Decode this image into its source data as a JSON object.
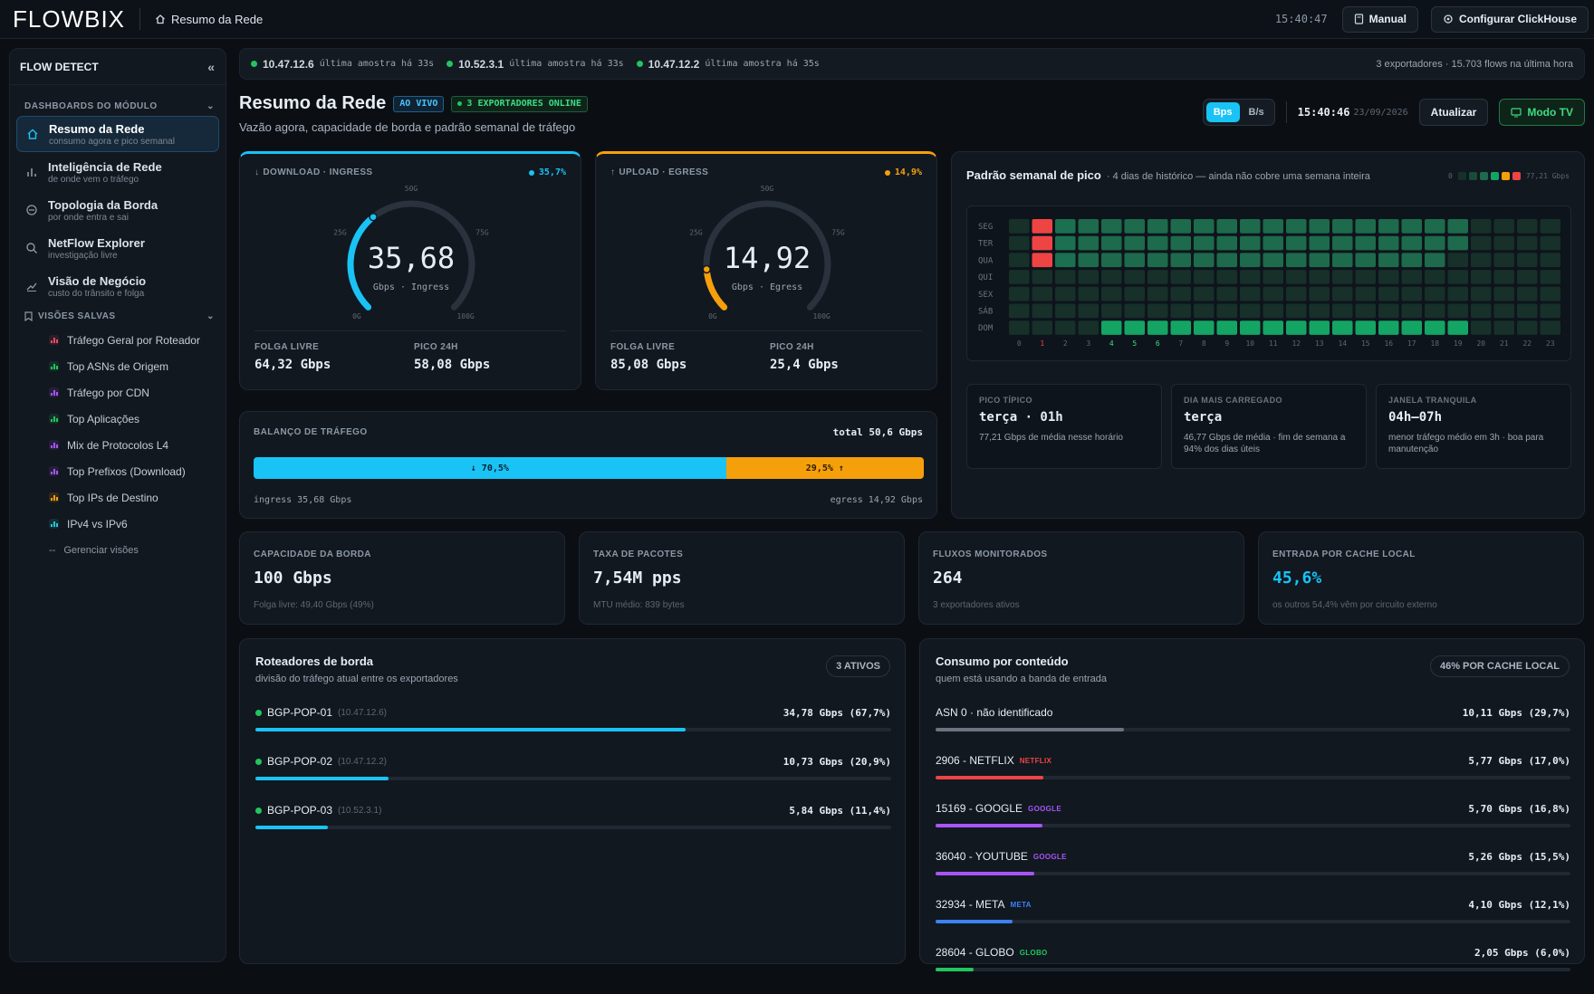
{
  "topbar": {
    "logo": "FLOWBIX",
    "breadcrumb": "Resumo da Rede",
    "clock": "15:40:47",
    "manual_label": "Manual",
    "config_label": "Configurar ClickHouse"
  },
  "sidebar": {
    "title": "FLOW DETECT",
    "section_dashboards": "DASHBOARDS DO MÓDULO",
    "nav": [
      {
        "title": "Resumo da Rede",
        "sub": "consumo agora e pico semanal",
        "icon": "home-icon",
        "active": true
      },
      {
        "title": "Inteligência de Rede",
        "sub": "de onde vem o tráfego",
        "icon": "bar-chart-icon"
      },
      {
        "title": "Topologia da Borda",
        "sub": "por onde entra e sai",
        "icon": "circle-minus-icon"
      },
      {
        "title": "NetFlow Explorer",
        "sub": "investigação livre",
        "icon": "search-icon"
      },
      {
        "title": "Visão de Negócio",
        "sub": "custo do trânsito e folga",
        "icon": "trend-icon"
      }
    ],
    "section_saved": "VISÕES SALVAS",
    "saved": [
      {
        "label": "Tráfego Geral por Roteador",
        "color": "#e04a6a"
      },
      {
        "label": "Top ASNs de Origem",
        "color": "#22c55e"
      },
      {
        "label": "Tráfego por CDN",
        "color": "#a855f7"
      },
      {
        "label": "Top Aplicações",
        "color": "#22c55e"
      },
      {
        "label": "Mix de Protocolos L4",
        "color": "#a855f7"
      },
      {
        "label": "Top Prefixos (Download)",
        "color": "#a855f7"
      },
      {
        "label": "Top IPs de Destino",
        "color": "#f59e0b"
      },
      {
        "label": "IPv4 vs IPv6",
        "color": "#22c5d5"
      }
    ],
    "manage": "Gerenciar visões"
  },
  "status": {
    "exporters": [
      {
        "ip": "10.47.12.6",
        "text": "última amostra há 33s"
      },
      {
        "ip": "10.52.3.1",
        "text": "última amostra há 33s"
      },
      {
        "ip": "10.47.12.2",
        "text": "última amostra há 35s"
      }
    ],
    "summary": "3 exportadores · 15.703 flows na última hora"
  },
  "header": {
    "title": "Resumo da Rede",
    "live_badge": "AO VIVO",
    "online_badge": "3 EXPORTADORES ONLINE",
    "subtitle": "Vazão agora, capacidade de borda e padrão semanal de tráfego",
    "unit_bps": "Bps",
    "unit_bs": "B/s",
    "time": "15:40:46",
    "date": "23/09/2026",
    "refresh_label": "Atualizar",
    "tv_label": "Modo TV"
  },
  "download": {
    "label": "DOWNLOAD · INGRESS",
    "pct": "35,7%",
    "value": "35,68",
    "unit": "Gbps · Ingress",
    "fraction": 0.3568,
    "t0": "0G",
    "t25": "25G",
    "t50": "50G",
    "t75": "75G",
    "t100": "100G",
    "free_label": "FOLGA LIVRE",
    "free": "64,32 Gbps",
    "peak_label": "PICO 24H",
    "peak": "58,08 Gbps",
    "color": "#19c3f5"
  },
  "upload": {
    "label": "UPLOAD · EGRESS",
    "pct": "14,9%",
    "value": "14,92",
    "unit": "Gbps · Egress",
    "fraction": 0.1492,
    "t0": "0G",
    "t25": "25G",
    "t50": "50G",
    "t75": "75G",
    "t100": "100G",
    "free_label": "FOLGA LIVRE",
    "free": "85,08 Gbps",
    "peak_label": "PICO 24H",
    "peak": "25,4 Gbps",
    "color": "#f5a00b"
  },
  "balance": {
    "label": "BALANÇO DE TRÁFEGO",
    "total": "total 50,6 Gbps",
    "in_pct": 70.5,
    "in_label": "↓ 70,5%",
    "out_label": "29,5% ↑",
    "ingress": "ingress 35,68 Gbps",
    "egress": "egress 14,92 Gbps"
  },
  "heatmap": {
    "title": "Padrão semanal de pico",
    "subtitle": "· 4 dias de histórico — ainda não cobre uma semana inteira",
    "legend_min": "0",
    "legend_max": "77,21 Gbps",
    "days": [
      "SEG",
      "TER",
      "QUA",
      "QUI",
      "SEX",
      "SÁB",
      "DOM"
    ],
    "hours": [
      "0",
      "1",
      "2",
      "3",
      "4",
      "5",
      "6",
      "7",
      "8",
      "9",
      "10",
      "11",
      "12",
      "13",
      "14",
      "15",
      "16",
      "17",
      "18",
      "19",
      "20",
      "21",
      "22",
      "23"
    ],
    "rows": [
      [
        0,
        5,
        3,
        2,
        2,
        2,
        2,
        2,
        2,
        2,
        2,
        2,
        2,
        2,
        2,
        2,
        2,
        2,
        2,
        2,
        0,
        0,
        0,
        0
      ],
      [
        0,
        5,
        3,
        2,
        2,
        2,
        2,
        2,
        2,
        2,
        2,
        2,
        2,
        2,
        2,
        2,
        2,
        2,
        2,
        2,
        0,
        0,
        0,
        0
      ],
      [
        0,
        5,
        3,
        2,
        2,
        2,
        2,
        2,
        2,
        2,
        2,
        2,
        2,
        2,
        2,
        2,
        2,
        2,
        2,
        0,
        0,
        0,
        0,
        0
      ],
      [
        0,
        0,
        0,
        0,
        0,
        0,
        0,
        0,
        0,
        0,
        0,
        0,
        0,
        0,
        0,
        0,
        0,
        0,
        0,
        0,
        0,
        0,
        0,
        0
      ],
      [
        0,
        0,
        0,
        0,
        0,
        0,
        0,
        0,
        0,
        0,
        0,
        0,
        0,
        0,
        0,
        0,
        0,
        0,
        0,
        0,
        0,
        0,
        0,
        0
      ],
      [
        0,
        0,
        0,
        0,
        0,
        0,
        0,
        0,
        0,
        0,
        0,
        0,
        0,
        0,
        0,
        0,
        0,
        0,
        0,
        0,
        0,
        0,
        0,
        0
      ],
      [
        0,
        0,
        0,
        0,
        3,
        3,
        3,
        3,
        3,
        3,
        3,
        3,
        3,
        3,
        3,
        3,
        3,
        3,
        3,
        3,
        0,
        0,
        0,
        0
      ]
    ],
    "hot_hours": [
      1,
      4,
      5,
      6
    ]
  },
  "insights": [
    {
      "label": "PICO TÍPICO",
      "value": "terça · 01h",
      "desc": "77,21 Gbps de média nesse horário"
    },
    {
      "label": "DIA MAIS CARREGADO",
      "value": "terça",
      "desc": "46,77 Gbps de média · fim de semana a 94% dos dias úteis"
    },
    {
      "label": "JANELA TRANQUILA",
      "value": "04h–07h",
      "desc": "menor tráfego médio em 3h · boa para manutenção"
    }
  ],
  "kpis": [
    {
      "label": "CAPACIDADE DA BORDA",
      "value": "100 Gbps",
      "sub": "Folga livre: 49,40 Gbps (49%)"
    },
    {
      "label": "TAXA DE PACOTES",
      "value": "7,54M pps",
      "sub": "MTU médio: 839 bytes"
    },
    {
      "label": "FLUXOS MONITORADOS",
      "value": "264",
      "sub": "3 exportadores ativos"
    },
    {
      "label": "ENTRADA POR CACHE LOCAL",
      "value": "45,6%",
      "sub": "os outros 54,4% vêm por circuito externo"
    }
  ],
  "routers": {
    "title": "Roteadores de borda",
    "subtitle": "divisão do tráfego atual entre os exportadores",
    "badge": "3 ATIVOS",
    "items": [
      {
        "name": "BGP-POP-01",
        "ip": "(10.47.12.6)",
        "value": "34,78 Gbps (67,7%)",
        "pct": 67.7
      },
      {
        "name": "BGP-POP-02",
        "ip": "(10.47.12.2)",
        "value": "10,73 Gbps (20,9%)",
        "pct": 20.9
      },
      {
        "name": "BGP-POP-03",
        "ip": "(10.52.3.1)",
        "value": "5,84 Gbps (11,4%)",
        "pct": 11.4
      }
    ]
  },
  "content": {
    "title": "Consumo por conteúdo",
    "subtitle": "quem está usando a banda de entrada",
    "badge": "46% POR CACHE LOCAL",
    "items": [
      {
        "name": "ASN 0 · não identificado",
        "tag": "",
        "tag_color": "#888",
        "value": "10,11 Gbps (29,7%)",
        "pct": 29.7,
        "color": "#6b7480"
      },
      {
        "name": "2906 - NETFLIX",
        "tag": "NETFLIX",
        "tag_color": "#ef4444",
        "value": "5,77 Gbps (17,0%)",
        "pct": 17.0,
        "color": "#ef4444"
      },
      {
        "name": "15169 - GOOGLE",
        "tag": "GOOGLE",
        "tag_color": "#a855f7",
        "value": "5,70 Gbps (16,8%)",
        "pct": 16.8,
        "color": "#a855f7"
      },
      {
        "name": "36040 - YOUTUBE",
        "tag": "GOOGLE",
        "tag_color": "#a855f7",
        "value": "5,26 Gbps (15,5%)",
        "pct": 15.5,
        "color": "#a855f7"
      },
      {
        "name": "32934 - META",
        "tag": "META",
        "tag_color": "#3b82f6",
        "value": "4,10 Gbps (12,1%)",
        "pct": 12.1,
        "color": "#3b82f6"
      },
      {
        "name": "28604 - GLOBO",
        "tag": "GLOBO",
        "tag_color": "#22c55e",
        "value": "2,05 Gbps (6,0%)",
        "pct": 6.0,
        "color": "#22c55e"
      }
    ]
  }
}
